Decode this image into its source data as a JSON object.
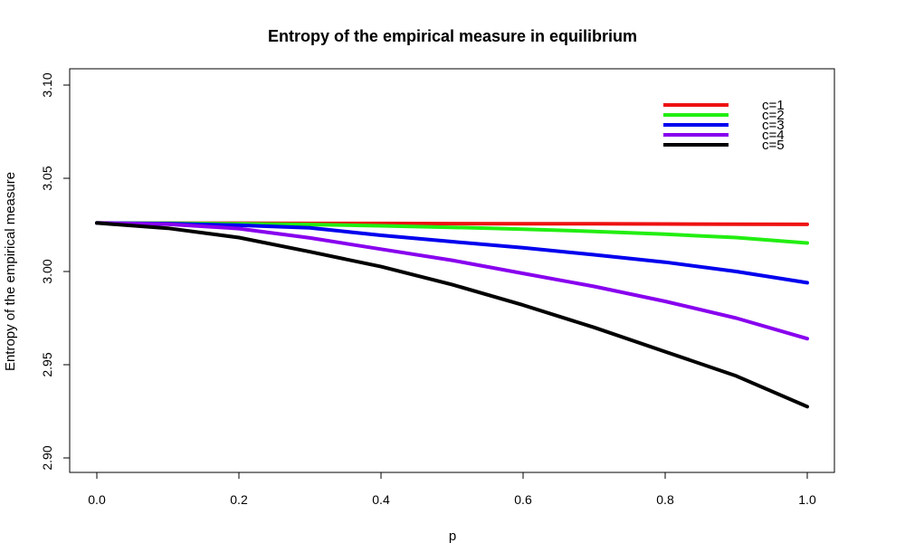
{
  "chart_data": {
    "type": "line",
    "title": "Entropy of the empirical measure in equilibrium",
    "xlabel": "p",
    "ylabel": "Entropy of the empirical measure",
    "xlim": [
      0,
      1
    ],
    "ylim": [
      2.9,
      3.1
    ],
    "xticks": [
      0.0,
      0.2,
      0.4,
      0.6,
      0.8,
      1.0
    ],
    "xtick_labels": [
      "0.0",
      "0.2",
      "0.4",
      "0.6",
      "0.8",
      "1.0"
    ],
    "yticks": [
      2.9,
      2.95,
      3.0,
      3.05,
      3.1
    ],
    "ytick_labels": [
      "2.90",
      "2.95",
      "3.00",
      "3.05",
      "3.10"
    ],
    "grid": false,
    "legend_position": "top-right",
    "x": [
      0.0,
      0.1,
      0.2,
      0.3,
      0.4,
      0.5,
      0.6,
      0.7,
      0.8,
      0.9,
      1.0
    ],
    "series": [
      {
        "name": "c=1",
        "color": "#ee1111",
        "values": [
          3.026,
          3.0259,
          3.0259,
          3.0258,
          3.0258,
          3.0257,
          3.0256,
          3.0256,
          3.0255,
          3.0254,
          3.0253
        ]
      },
      {
        "name": "c=2",
        "color": "#22ee11",
        "values": [
          3.026,
          3.0259,
          3.0256,
          3.0252,
          3.0245,
          3.0237,
          3.0227,
          3.0215,
          3.02,
          3.0182,
          3.0153
        ]
      },
      {
        "name": "c=3",
        "color": "#0000ee",
        "values": [
          3.026,
          3.0257,
          3.0248,
          3.0234,
          3.0194,
          3.016,
          3.0127,
          3.009,
          3.005,
          3.0,
          2.994
        ]
      },
      {
        "name": "c=4",
        "color": "#8800ee",
        "values": [
          3.026,
          3.0254,
          3.023,
          3.018,
          3.012,
          3.006,
          2.999,
          2.992,
          2.984,
          2.975,
          2.964
        ]
      },
      {
        "name": "c=5",
        "color": "#000000",
        "values": [
          3.026,
          3.0232,
          3.0182,
          3.0106,
          3.0026,
          2.993,
          2.982,
          2.97,
          2.957,
          2.944,
          2.9275
        ]
      }
    ]
  }
}
